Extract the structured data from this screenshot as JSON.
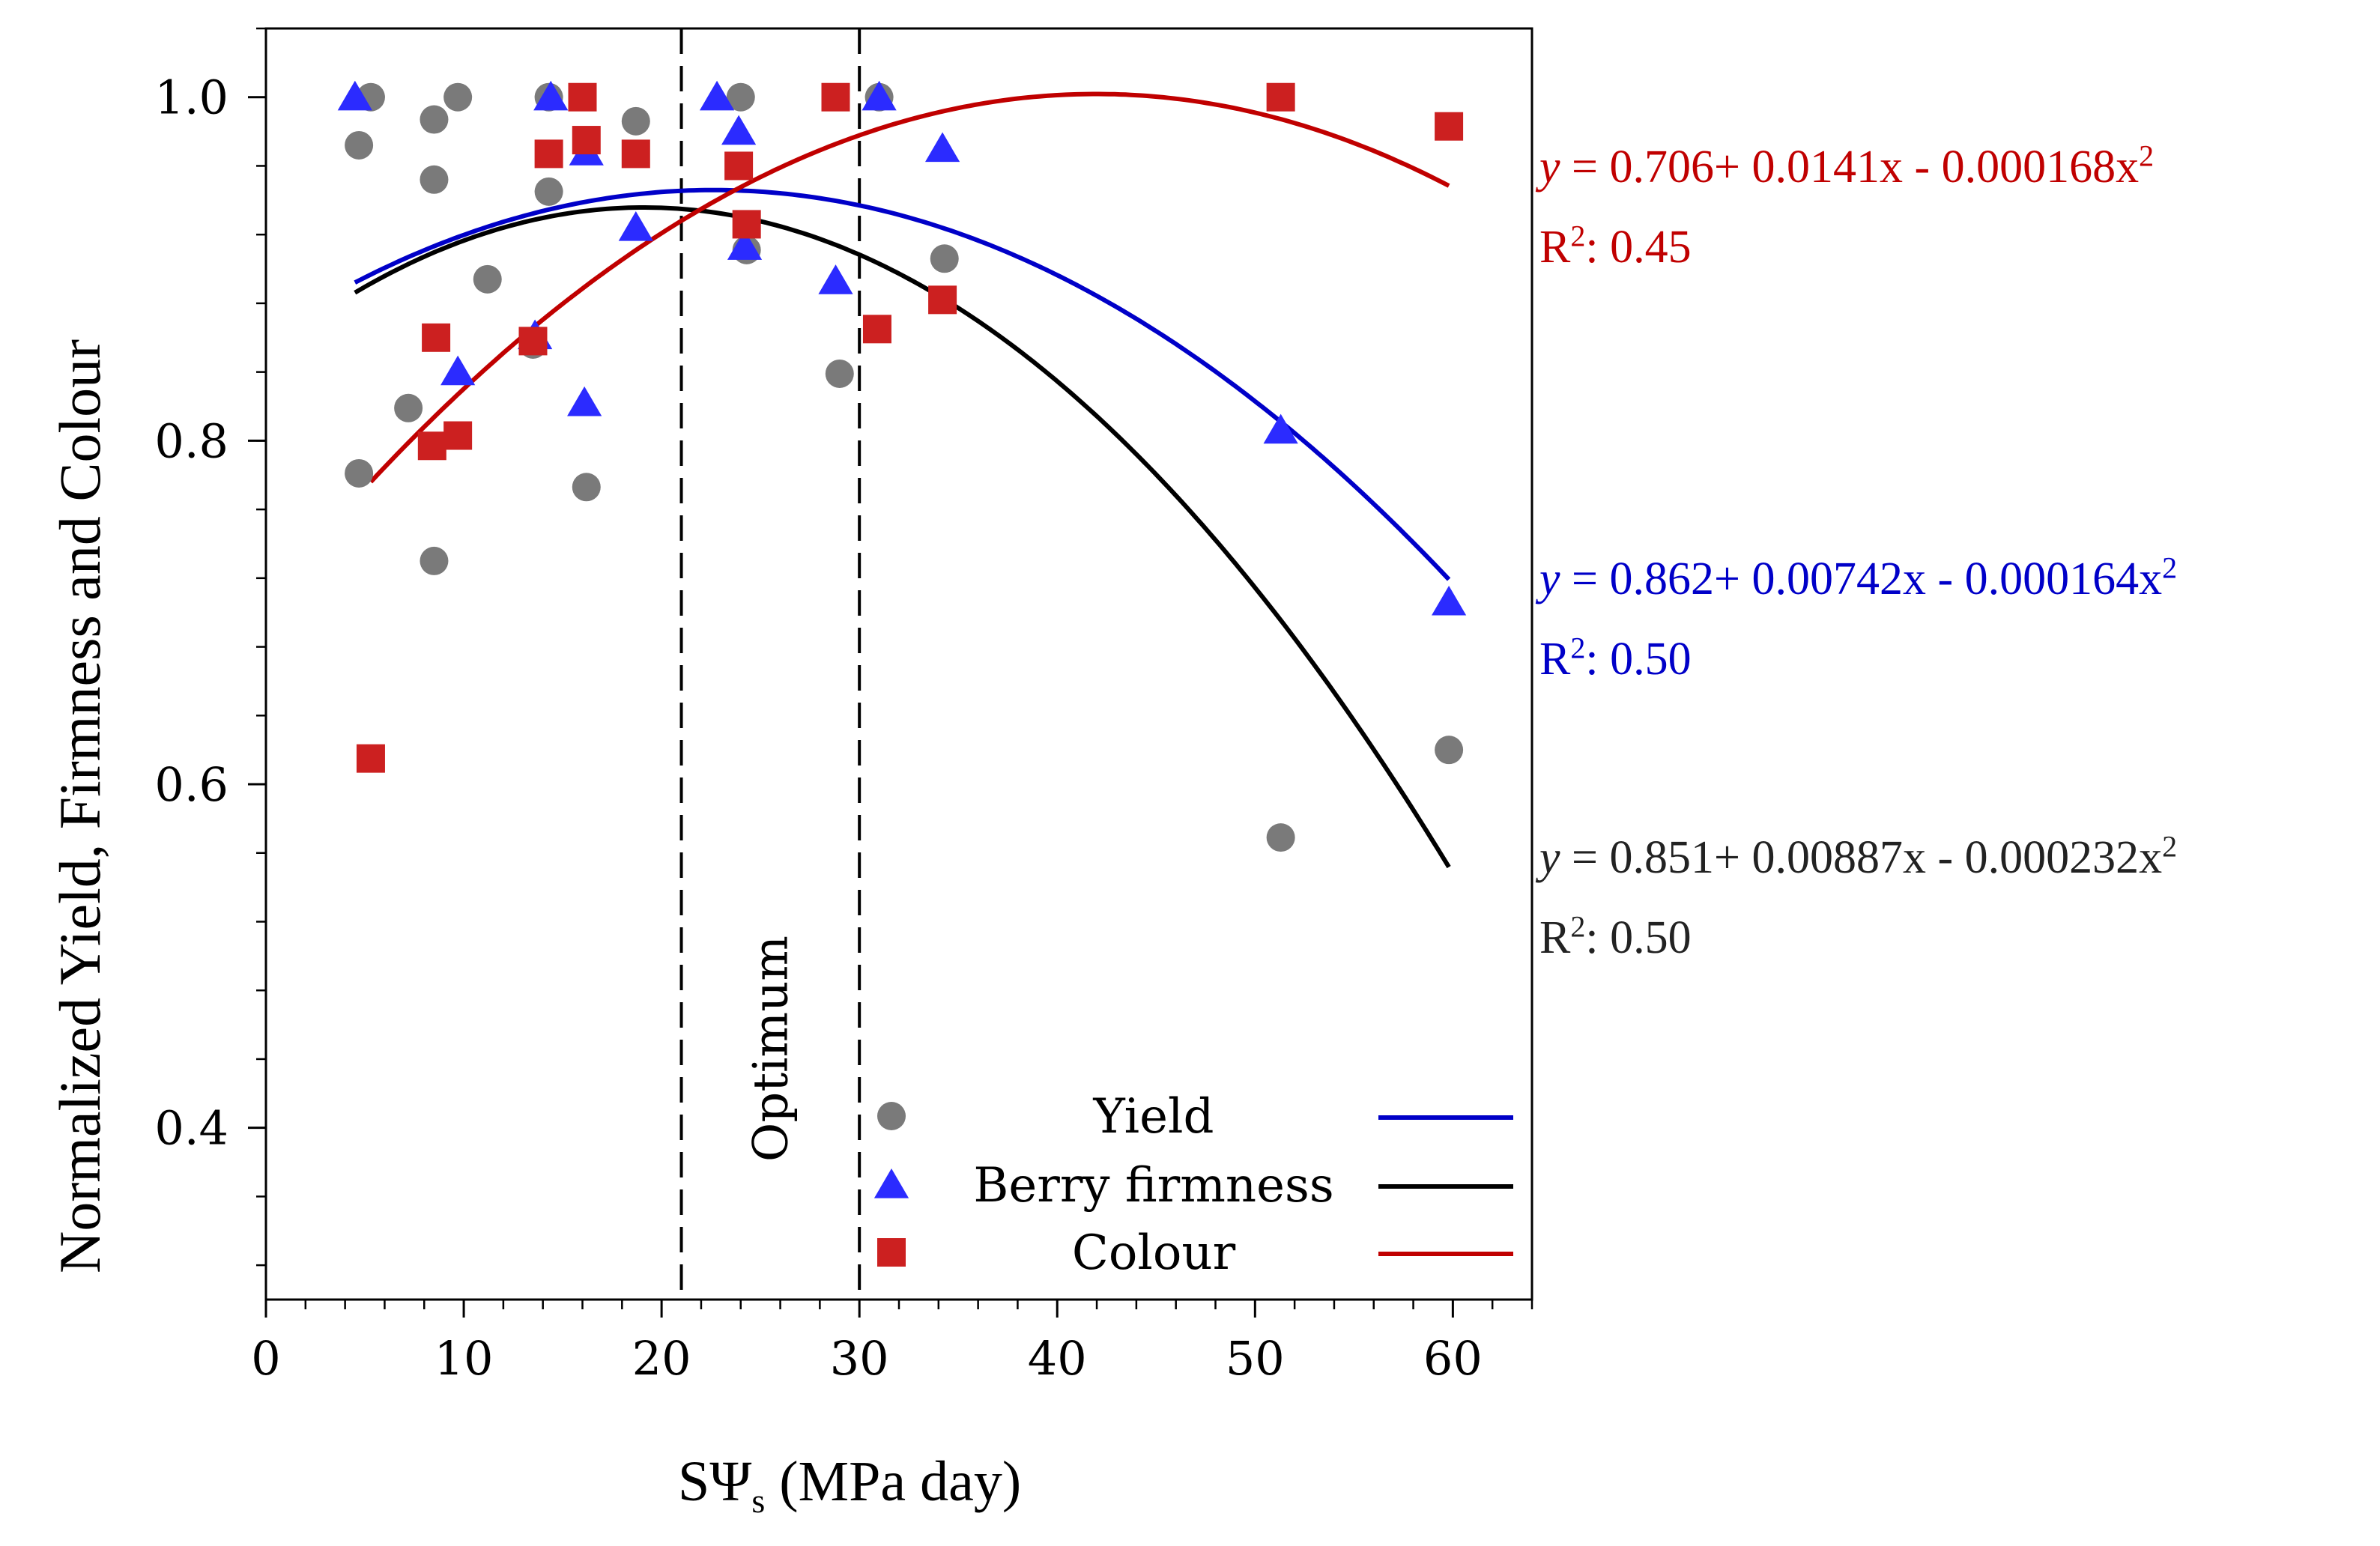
{
  "chart_data": {
    "type": "scatter",
    "title": "",
    "xlabel": "SΨs (MPa day)",
    "xlabel_main": "SΨ",
    "xlabel_sub": "s",
    "xlabel_unit": " (MPa day)",
    "ylabel": "Normalized Yield, Firmness and Colour",
    "xlim": [
      0,
      64
    ],
    "ylim": [
      0.3,
      1.04
    ],
    "x_ticks": [
      0,
      10,
      20,
      30,
      40,
      50,
      60
    ],
    "x_tick_labels": [
      "0",
      "10",
      "20",
      "30",
      "40",
      "50",
      "60"
    ],
    "y_ticks": [
      0.4,
      0.6,
      0.8,
      1.0
    ],
    "y_tick_labels": [
      "0.4",
      "0.6",
      "0.8",
      "1.0"
    ],
    "optimum_lines": [
      21,
      30
    ],
    "optimum_label": "Optimum",
    "legend_position": "bottom-right",
    "series": [
      {
        "name": "Yield",
        "marker": "circle",
        "marker_color": "#7a7a7a",
        "fit_color": "#0000c8",
        "points": [
          [
            4.7,
            0.972
          ],
          [
            5.3,
            1.0
          ],
          [
            4.7,
            0.781
          ],
          [
            7.2,
            0.819
          ],
          [
            8.5,
            0.987
          ],
          [
            8.5,
            0.952
          ],
          [
            8.5,
            0.73
          ],
          [
            9.7,
            1.0
          ],
          [
            11.2,
            0.894
          ],
          [
            13.5,
            0.856
          ],
          [
            14.3,
            0.945
          ],
          [
            14.3,
            1.0
          ],
          [
            16.2,
            0.773
          ],
          [
            18.7,
            0.986
          ],
          [
            24,
            1.0
          ],
          [
            24.3,
            0.911
          ],
          [
            29,
            0.839
          ],
          [
            31,
            1.0
          ],
          [
            34.3,
            0.906
          ],
          [
            51.3,
            0.569
          ],
          [
            59.8,
            0.62
          ]
        ]
      },
      {
        "name": "Berry firmness",
        "marker": "triangle",
        "marker_color": "#2b2bff",
        "fit_color": "#000000",
        "points": [
          [
            4.5,
            1.0
          ],
          [
            9.7,
            0.84
          ],
          [
            13.6,
            0.861
          ],
          [
            14.4,
            1.0
          ],
          [
            16.1,
            0.822
          ],
          [
            16.2,
            0.968
          ],
          [
            18.7,
            0.924
          ],
          [
            22.8,
            1.0
          ],
          [
            23.9,
            0.98
          ],
          [
            24.2,
            0.913
          ],
          [
            28.8,
            0.893
          ],
          [
            31,
            1.0
          ],
          [
            34.2,
            0.97
          ],
          [
            51.3,
            0.806
          ],
          [
            59.8,
            0.706
          ]
        ]
      },
      {
        "name": "Colour",
        "marker": "square",
        "marker_color": "#cc2020",
        "fit_color": "#c00000",
        "points": [
          [
            5.3,
            0.615
          ],
          [
            8.4,
            0.797
          ],
          [
            8.6,
            0.86
          ],
          [
            9.7,
            0.803
          ],
          [
            13.5,
            0.858
          ],
          [
            14.3,
            0.967
          ],
          [
            16,
            1.0
          ],
          [
            16.2,
            0.975
          ],
          [
            18.7,
            0.967
          ],
          [
            23.9,
            0.96
          ],
          [
            24.3,
            0.926
          ],
          [
            28.8,
            1.0
          ],
          [
            30.9,
            0.865
          ],
          [
            34.2,
            0.882
          ],
          [
            51.3,
            1.0
          ],
          [
            59.8,
            0.983
          ]
        ]
      }
    ],
    "fits": [
      {
        "name": "Yield",
        "color": "#0000c8",
        "a": 0.862,
        "b": 0.00742,
        "c": -0.000164,
        "x_range": [
          4.5,
          59.8
        ]
      },
      {
        "name": "Berry firmness",
        "color": "#000000",
        "a": 0.851,
        "b": 0.00887,
        "c": -0.000232,
        "x_range": [
          4.5,
          59.8
        ]
      },
      {
        "name": "Colour",
        "color": "#c00000",
        "a": 0.706,
        "b": 0.0141,
        "c": -0.000168,
        "x_range": [
          5.3,
          59.8
        ]
      }
    ],
    "equations": [
      {
        "color": "#c00000",
        "y_italic": "y",
        "body": " = 0.706+ 0.0141x - 0.000168x",
        "exp": "2",
        "r2_label": "R",
        "r2_exp": "2",
        "r2_value": ": 0.45"
      },
      {
        "color": "#0000c8",
        "y_italic": "y",
        "body": " = 0.862+ 0.00742x - 0.000164x",
        "exp": "2",
        "r2_label": "R",
        "r2_exp": "2",
        "r2_value": ": 0.50"
      },
      {
        "color": "#222222",
        "y_italic": "y",
        "body": " = 0.851+ 0.00887x - 0.000232x",
        "exp": "2",
        "r2_label": "R",
        "r2_exp": "2",
        "r2_value": ": 0.50"
      }
    ]
  }
}
